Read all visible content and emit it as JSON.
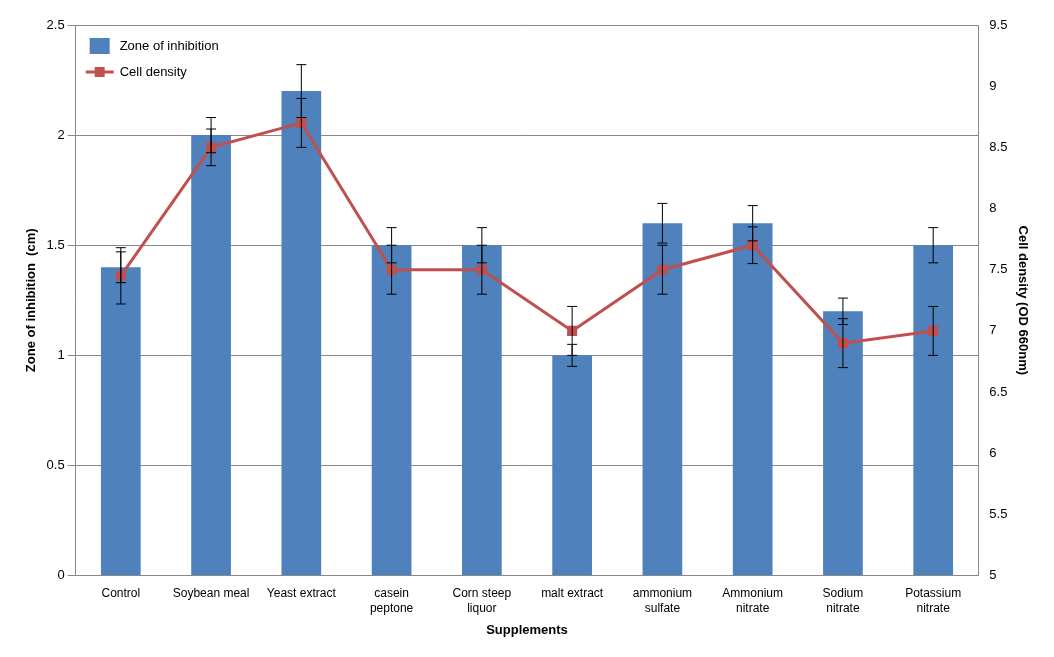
{
  "chart_data": {
    "type": "bar",
    "x_label": "Supplements",
    "y_label": "Zone of inhibition  (cm)",
    "y2_label": "Cell density (OD 660nm)",
    "categories": [
      "Control",
      "Soybean meal",
      "Yeast extract",
      "casein peptone",
      "Corn steep liquor",
      "malt extract",
      "ammonium sulfate",
      "Ammonium nitrate",
      "Sodium nitrate",
      "Potassium nitrate"
    ],
    "series": [
      {
        "name": "Zone of inhibition",
        "type": "bar",
        "color": "#4f81bd",
        "values": [
          1.4,
          2.0,
          2.2,
          1.5,
          1.5,
          1.0,
          1.6,
          1.6,
          1.2,
          1.5
        ],
        "errors": [
          0.07,
          0.08,
          0.12,
          0.08,
          0.08,
          0.05,
          0.09,
          0.08,
          0.06,
          0.08
        ]
      },
      {
        "name": "Cell density",
        "type": "line",
        "axis": "y2",
        "color": "#c0504d",
        "marker": "square",
        "values": [
          7.45,
          8.5,
          8.7,
          7.5,
          7.5,
          7.0,
          7.5,
          7.7,
          6.9,
          7.0
        ],
        "errors": [
          0.23,
          0.15,
          0.2,
          0.2,
          0.2,
          0.2,
          0.2,
          0.15,
          0.2,
          0.2
        ]
      }
    ],
    "ylim": [
      0,
      2.5
    ],
    "yticks": [
      0,
      0.5,
      1,
      1.5,
      2,
      2.5
    ],
    "y2lim": [
      5,
      9.5
    ],
    "y2ticks": [
      5,
      5.5,
      6,
      6.5,
      7,
      7.5,
      8,
      8.5,
      9,
      9.5
    ],
    "grid": true,
    "legend": "upper left"
  }
}
